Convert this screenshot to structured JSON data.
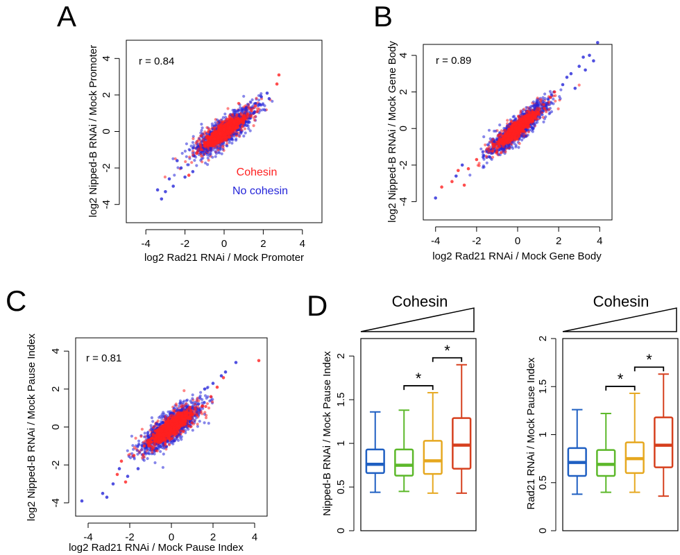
{
  "figure": {
    "panel_labels": [
      "A",
      "B",
      "C",
      "D"
    ]
  },
  "colors": {
    "cohesin": "#ff2020",
    "no_cohesin": "#2424d8",
    "box_blue": "#1f5fc2",
    "box_green": "#5cb82a",
    "box_gold": "#e6a820",
    "box_red": "#d6401e"
  },
  "chart_data": [
    {
      "id": "A",
      "type": "scatter",
      "title": "",
      "xlabel": "log2 Rad21 RNAi / Mock Promoter",
      "ylabel": "log2 Nipped-B RNAi / Mock Promoter",
      "xlim": [
        -5,
        5
      ],
      "ylim": [
        -5,
        5
      ],
      "xticks": [
        -4,
        -2,
        0,
        2,
        4
      ],
      "yticks": [
        -4,
        -2,
        0,
        2,
        4
      ],
      "annotation": "r = 0.84",
      "r": 0.84,
      "legend": {
        "placement": "bottom-right",
        "entries": [
          "Cohesin",
          "No cohesin"
        ]
      },
      "series": [
        {
          "name": "Cohesin",
          "color": "#ff2020",
          "points": [
            [
              -0.8,
              -0.6
            ],
            [
              -0.5,
              -0.4
            ],
            [
              -0.2,
              -0.1
            ],
            [
              0,
              0.1
            ],
            [
              0.3,
              0.2
            ],
            [
              0.5,
              0.5
            ],
            [
              -1.0,
              -0.8
            ],
            [
              0.8,
              0.6
            ],
            [
              1.2,
              0.9
            ],
            [
              -1.4,
              -1.2
            ],
            [
              2.7,
              2.6
            ],
            [
              2.8,
              3.1
            ],
            [
              -1.8,
              -2.4
            ],
            [
              1.6,
              1.4
            ],
            [
              0.6,
              0.2
            ],
            [
              -0.3,
              -0.6
            ]
          ]
        },
        {
          "name": "No cohesin",
          "color": "#2424d8",
          "points": [
            [
              -3.4,
              -3.2
            ],
            [
              -3.0,
              -3.3
            ],
            [
              -3.2,
              -3.7
            ],
            [
              -2.6,
              -3.0
            ],
            [
              -2.2,
              -2.0
            ],
            [
              -2.4,
              -1.6
            ],
            [
              2.2,
              2.1
            ],
            [
              2.3,
              1.8
            ],
            [
              1.9,
              1.9
            ],
            [
              1.5,
              1.0
            ],
            [
              -2.8,
              -2.6
            ],
            [
              -2.0,
              -2.5
            ],
            [
              1.8,
              1.5
            ],
            [
              -1.6,
              -2.2
            ]
          ]
        }
      ]
    },
    {
      "id": "B",
      "type": "scatter",
      "title": "",
      "xlabel": "log2 Rad21 RNAi / Mock Gene Body",
      "ylabel": "log2 Nipped-B RNAi / Mock Gene Body",
      "xlim": [
        -4.6,
        4.6
      ],
      "ylim": [
        -5,
        4.6
      ],
      "xticks": [
        -4,
        -2,
        0,
        2,
        4
      ],
      "yticks": [
        -4,
        -2,
        0,
        2,
        4
      ],
      "annotation": "r = 0.89",
      "r": 0.89,
      "series": [
        {
          "name": "Cohesin",
          "color": "#ff2020",
          "points": [
            [
              -3.7,
              -3.2
            ],
            [
              -3.2,
              -2.9
            ],
            [
              -2.9,
              -2.3
            ],
            [
              -2.4,
              -2.2
            ],
            [
              -2.0,
              -1.7
            ],
            [
              1.6,
              1.7
            ],
            [
              1.8,
              2.0
            ],
            [
              -1.2,
              -0.9
            ],
            [
              0.4,
              0.5
            ],
            [
              1.3,
              1.1
            ],
            [
              -2.6,
              -3.1
            ]
          ]
        },
        {
          "name": "No cohesin",
          "color": "#2424d8",
          "points": [
            [
              -4.0,
              -3.8
            ],
            [
              3.9,
              4.7
            ],
            [
              3.7,
              3.7
            ],
            [
              3.0,
              3.4
            ],
            [
              2.6,
              3.0
            ],
            [
              2.2,
              2.4
            ],
            [
              2.8,
              2.2
            ],
            [
              3.2,
              3.9
            ],
            [
              3.5,
              4.0
            ],
            [
              -3.0,
              -2.6
            ],
            [
              -2.7,
              -2.0
            ],
            [
              2.4,
              2.8
            ],
            [
              3.3,
              3.2
            ]
          ]
        }
      ]
    },
    {
      "id": "C",
      "type": "scatter",
      "title": "",
      "xlabel": "log2 Rad21 RNAi / Mock Pause Index",
      "ylabel": "log2 Nipped-B RNAi / Mock Pause Index",
      "xlim": [
        -4.6,
        4.6
      ],
      "ylim": [
        -4.7,
        4.7
      ],
      "xticks": [
        -4,
        -2,
        0,
        2,
        4
      ],
      "yticks": [
        -4,
        -2,
        0,
        2,
        4
      ],
      "annotation": "r = 0.81",
      "r": 0.81,
      "series": [
        {
          "name": "Cohesin",
          "color": "#ff2020",
          "points": [
            [
              4.2,
              3.5
            ],
            [
              2.5,
              2.6
            ],
            [
              2.2,
              2.1
            ],
            [
              -2.4,
              -1.8
            ],
            [
              -2.6,
              -2.5
            ],
            [
              -2.2,
              -2.9
            ],
            [
              1.9,
              1.6
            ],
            [
              -1.8,
              -1.5
            ],
            [
              0.6,
              0.4
            ],
            [
              -1.3,
              -1.0
            ],
            [
              1.5,
              1.1
            ]
          ]
        },
        {
          "name": "No cohesin",
          "color": "#2424d8",
          "points": [
            [
              -4.3,
              -3.9
            ],
            [
              -3.1,
              -3.7
            ],
            [
              -3.3,
              -3.5
            ],
            [
              -2.8,
              -3.0
            ],
            [
              3.1,
              3.4
            ],
            [
              2.6,
              2.9
            ],
            [
              2.4,
              2.7
            ],
            [
              -2.5,
              -2.2
            ],
            [
              2.0,
              2.3
            ],
            [
              -2.1,
              -2.6
            ],
            [
              1.6,
              2.0
            ],
            [
              -1.6,
              -2.2
            ]
          ]
        }
      ]
    },
    {
      "id": "D1",
      "type": "box",
      "title": "Cohesin",
      "xlabel": "",
      "ylabel": "Nipped-B RNAi / Mock Pause Index",
      "ylim": [
        0,
        2.2
      ],
      "yticks": [
        0,
        0.5,
        1,
        1.5,
        2
      ],
      "ytick_labels": [
        "0",
        "0.5",
        "1",
        "1.5",
        "2"
      ],
      "significance": [
        "*",
        "*"
      ],
      "boxes": [
        {
          "min": 0.44,
          "q1": 0.66,
          "median": 0.76,
          "q3": 0.93,
          "max": 1.36,
          "color": "#1f5fc2"
        },
        {
          "min": 0.45,
          "q1": 0.63,
          "median": 0.75,
          "q3": 0.93,
          "max": 1.38,
          "color": "#5cb82a"
        },
        {
          "min": 0.43,
          "q1": 0.65,
          "median": 0.8,
          "q3": 1.03,
          "max": 1.58,
          "color": "#e6a820"
        },
        {
          "min": 0.43,
          "q1": 0.71,
          "median": 0.98,
          "q3": 1.29,
          "max": 1.9,
          "color": "#d6401e"
        }
      ]
    },
    {
      "id": "D2",
      "type": "box",
      "title": "Cohesin",
      "xlabel": "",
      "ylabel": "Rad21 RNAi / Mock Pause Index",
      "ylim": [
        0,
        2.0
      ],
      "yticks": [
        0,
        0.5,
        1,
        1.5,
        2
      ],
      "ytick_labels": [
        "0",
        "0.5",
        "1",
        "1.5",
        "2"
      ],
      "significance": [
        "*",
        "*"
      ],
      "boxes": [
        {
          "min": 0.38,
          "q1": 0.57,
          "median": 0.71,
          "q3": 0.86,
          "max": 1.26,
          "color": "#1f5fc2"
        },
        {
          "min": 0.4,
          "q1": 0.57,
          "median": 0.69,
          "q3": 0.84,
          "max": 1.22,
          "color": "#5cb82a"
        },
        {
          "min": 0.4,
          "q1": 0.6,
          "median": 0.75,
          "q3": 0.92,
          "max": 1.43,
          "color": "#e6a820"
        },
        {
          "min": 0.36,
          "q1": 0.66,
          "median": 0.89,
          "q3": 1.18,
          "max": 1.63,
          "color": "#d6401e"
        }
      ]
    }
  ]
}
